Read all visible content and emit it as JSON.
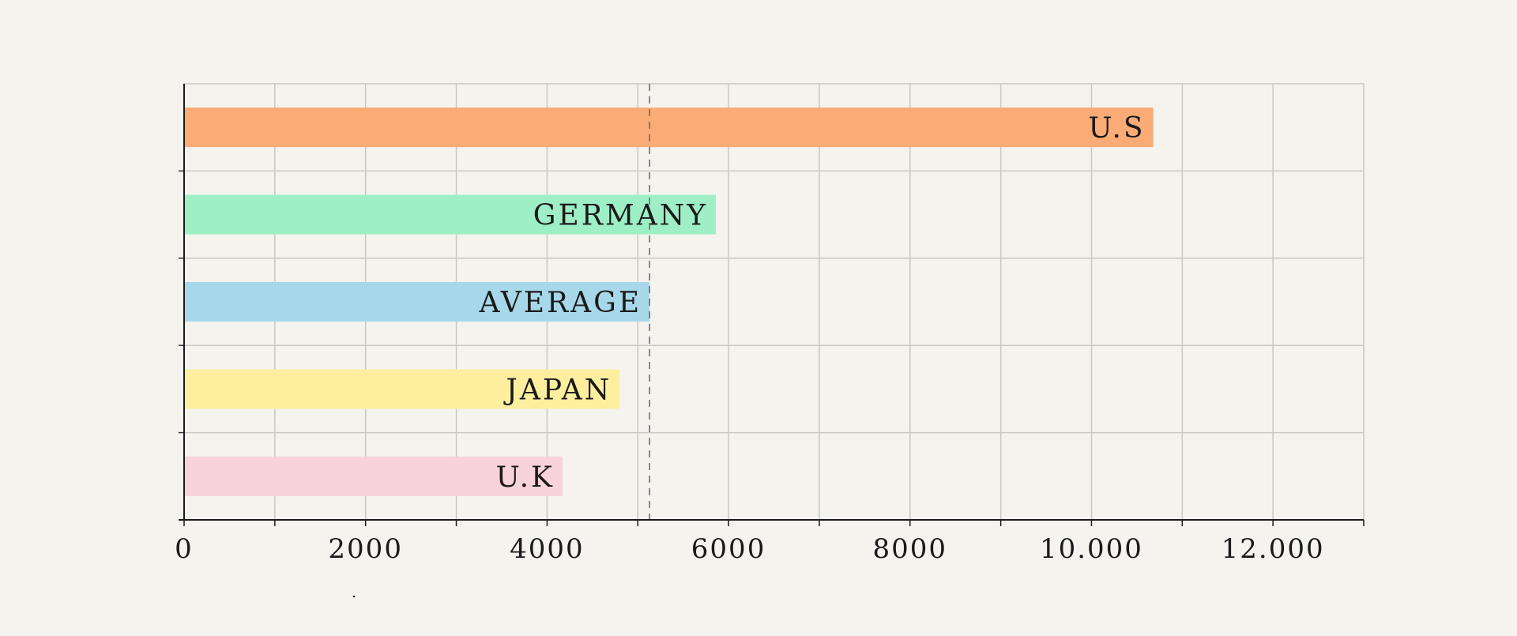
{
  "chart_data": {
    "type": "bar",
    "orientation": "horizontal",
    "title": "",
    "xlabel": "",
    "ylabel": "",
    "xlim": [
      0,
      13000
    ],
    "grid": true,
    "reference_line": {
      "value": 5130,
      "style": "dashed"
    },
    "categories": [
      "U.S",
      "GERMANY",
      "AVERAGE",
      "JAPAN",
      "U.K"
    ],
    "values": [
      10680,
      5860,
      5130,
      4800,
      4170
    ],
    "colors": [
      "#fbab75",
      "#9eefc6",
      "#a7d8ea",
      "#feef9e",
      "#f9d3db"
    ],
    "x_tick_labels": [
      "0",
      "2000",
      "4000",
      "6000",
      "8000",
      "10.000",
      "12.000"
    ],
    "x_tick_values": [
      0,
      2000,
      4000,
      6000,
      8000,
      10000,
      12000
    ],
    "footnote": "."
  }
}
